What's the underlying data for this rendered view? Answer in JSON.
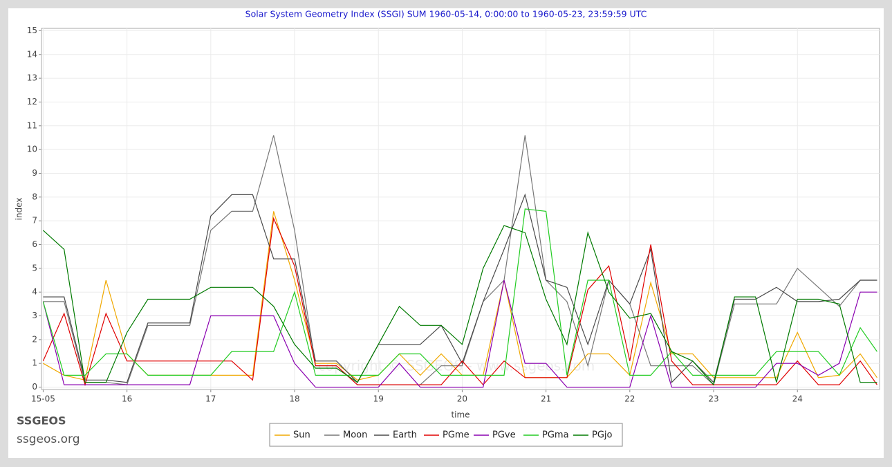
{
  "chart_data": {
    "type": "line",
    "title": "Solar System Geometry Index (SSGI) SUM 1960-05-14,  0:00:00 to 1960-05-23, 23:59:59 UTC",
    "xlabel": "time",
    "ylabel": "index",
    "brand": "SSGEOS",
    "brand_url": "ssgeos.org",
    "watermark": "copyright © SSGEOS - www.ssgeos.com",
    "xlim": [
      14.98,
      24.98
    ],
    "ylim": [
      -0.1,
      15.1
    ],
    "xticks": [
      {
        "value": 15,
        "label": "15-05"
      },
      16,
      17,
      18,
      19,
      20,
      21,
      22,
      23,
      24
    ],
    "yticks": [
      0,
      1,
      2,
      3,
      4,
      5,
      6,
      7,
      8,
      9,
      10,
      11,
      12,
      13,
      14,
      15
    ],
    "grid": true,
    "x": [
      15,
      15.25,
      15.5,
      15.75,
      16,
      16.25,
      16.5,
      16.75,
      17,
      17.25,
      17.5,
      17.75,
      18,
      18.25,
      18.5,
      18.75,
      19,
      19.25,
      19.5,
      19.75,
      20,
      20.25,
      20.5,
      20.75,
      21,
      21.25,
      21.5,
      21.75,
      22,
      22.25,
      22.5,
      22.75,
      23,
      23.25,
      23.5,
      23.75,
      24,
      24.25,
      24.5,
      24.75,
      24.95
    ],
    "series": [
      {
        "name": "Sun",
        "color": "#f0a800",
        "values": [
          1.0,
          0.5,
          0.3,
          4.5,
          1.4,
          0.5,
          0.5,
          0.5,
          0.5,
          0.5,
          0.5,
          7.4,
          4.5,
          1.0,
          1.0,
          0.3,
          0.5,
          1.4,
          0.5,
          1.4,
          0.5,
          0.5,
          4.5,
          0.4,
          0.4,
          0.4,
          1.4,
          1.4,
          0.5,
          4.4,
          1.4,
          1.4,
          0.4,
          0.4,
          0.4,
          0.4,
          2.3,
          0.4,
          0.5,
          1.4,
          0.4
        ]
      },
      {
        "name": "Moon",
        "color": "#777777",
        "values": [
          3.6,
          3.6,
          0.2,
          0.2,
          0.1,
          2.6,
          2.6,
          2.6,
          6.6,
          7.4,
          7.4,
          10.6,
          6.6,
          0.9,
          0.9,
          0.1,
          0.1,
          0.1,
          0.1,
          0.9,
          0.9,
          3.6,
          4.5,
          10.6,
          4.5,
          3.6,
          0.9,
          4.5,
          3.5,
          0.9,
          0.9,
          0.9,
          0.1,
          3.5,
          3.5,
          3.5,
          5.0,
          4.2,
          3.4,
          4.5,
          4.5
        ]
      },
      {
        "name": "Earth",
        "color": "#4a4a4a",
        "values": [
          3.8,
          3.8,
          0.3,
          0.3,
          0.2,
          2.7,
          2.7,
          2.7,
          7.2,
          8.1,
          8.1,
          5.4,
          5.4,
          1.1,
          1.1,
          0.2,
          1.8,
          1.8,
          1.8,
          2.6,
          1.0,
          3.6,
          5.8,
          8.1,
          4.5,
          4.2,
          1.8,
          4.5,
          3.5,
          5.8,
          0.2,
          1.1,
          0.2,
          3.7,
          3.7,
          4.2,
          3.6,
          3.6,
          3.7,
          4.5,
          4.5
        ]
      },
      {
        "name": "PGme",
        "color": "#e00000",
        "values": [
          1.1,
          3.1,
          0.1,
          3.1,
          1.1,
          1.1,
          1.1,
          1.1,
          1.1,
          1.1,
          0.3,
          7.1,
          5.1,
          0.9,
          0.9,
          0.1,
          0.1,
          0.1,
          0.1,
          0.1,
          1.1,
          0.1,
          1.1,
          0.4,
          0.4,
          0.4,
          4.1,
          5.1,
          1.1,
          6.0,
          1.1,
          0.1,
          0.1,
          0.1,
          0.1,
          0.1,
          1.1,
          0.1,
          0.1,
          1.1,
          0.1
        ]
      },
      {
        "name": "PGve",
        "color": "#8a00b0",
        "values": [
          3.6,
          0.1,
          0.1,
          0.1,
          0.1,
          0.1,
          0.1,
          0.1,
          3.0,
          3.0,
          3.0,
          3.0,
          1.0,
          0.0,
          0.0,
          0.0,
          0.0,
          1.0,
          0.0,
          0.0,
          0.0,
          0.0,
          4.5,
          1.0,
          1.0,
          0.0,
          0.0,
          0.0,
          0.0,
          3.0,
          0.0,
          0.0,
          0.0,
          0.0,
          0.0,
          1.0,
          1.0,
          0.5,
          1.0,
          4.0,
          4.0
        ]
      },
      {
        "name": "PGma",
        "color": "#22cc22",
        "values": [
          3.6,
          0.5,
          0.5,
          1.4,
          1.4,
          0.5,
          0.5,
          0.5,
          0.5,
          1.5,
          1.5,
          1.5,
          4.0,
          0.5,
          0.5,
          0.5,
          0.5,
          1.4,
          1.4,
          0.5,
          0.5,
          0.5,
          0.5,
          7.5,
          7.4,
          0.5,
          4.5,
          4.5,
          0.5,
          0.5,
          1.5,
          0.5,
          0.5,
          0.5,
          0.5,
          1.5,
          1.5,
          1.5,
          0.5,
          2.5,
          1.5
        ]
      },
      {
        "name": "PGjo",
        "color": "#007a00",
        "values": [
          6.6,
          5.8,
          0.2,
          0.2,
          2.3,
          3.7,
          3.7,
          3.7,
          4.2,
          4.2,
          4.2,
          3.4,
          1.8,
          0.8,
          0.8,
          0.2,
          1.8,
          3.4,
          2.6,
          2.6,
          1.8,
          5.0,
          6.8,
          6.5,
          3.7,
          1.8,
          6.5,
          4.0,
          2.9,
          3.1,
          1.5,
          1.1,
          0.1,
          3.8,
          3.8,
          0.2,
          3.7,
          3.7,
          3.5,
          0.2,
          0.2
        ]
      }
    ]
  }
}
